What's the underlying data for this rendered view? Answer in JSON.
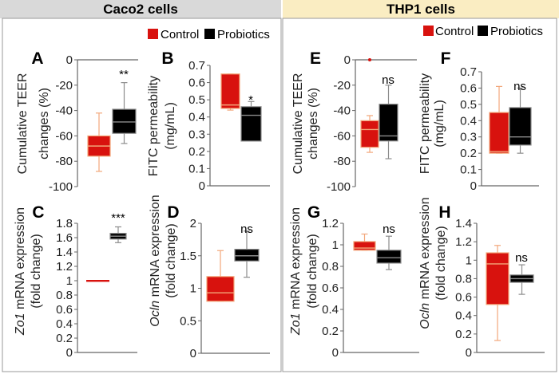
{
  "headers": {
    "left": "Caco2 cells",
    "right": "THP1 cells"
  },
  "legend": {
    "control": "Control",
    "probiotics": "Probiotics"
  },
  "colors": {
    "control_fill": "#d8120e",
    "control_line": "#f2a77a",
    "probiotics_fill": "#000000",
    "probiotics_line": "#8c8c8c",
    "left_header_bg": "#d9d9d9",
    "right_header_bg": "#faedc2"
  },
  "chart_data": [
    {
      "panel": "A",
      "type": "box",
      "ylabel_gene": "",
      "ylabel": [
        "Cumulative TEER",
        "changes (%)"
      ],
      "ylim": [
        -100,
        0
      ],
      "yticks": [
        "0",
        "-20",
        "-40",
        "-60",
        "-80",
        "-100"
      ],
      "significance": "**",
      "series": [
        {
          "name": "Control",
          "min": -88,
          "q1": -76,
          "median": -68,
          "q3": -60,
          "max": -42
        },
        {
          "name": "Probiotics",
          "min": -66,
          "q1": -58,
          "median": -49,
          "q3": -39,
          "max": -18
        }
      ]
    },
    {
      "panel": "B",
      "type": "box",
      "ylabel_gene": "",
      "ylabel": [
        "FITC permeability",
        "(mg/mL)"
      ],
      "ylim": [
        0,
        0.7
      ],
      "yticks": [
        "0",
        "0.1",
        "0.2",
        "0.3",
        "0.4",
        "0.5",
        "0.6",
        "0.7"
      ],
      "significance": "*",
      "series": [
        {
          "name": "Control",
          "min": 0.44,
          "q1": 0.45,
          "median": 0.47,
          "q3": 0.65,
          "max": 0.65
        },
        {
          "name": "Probiotics",
          "min": 0.26,
          "q1": 0.26,
          "median": 0.41,
          "q3": 0.46,
          "max": 0.49
        }
      ]
    },
    {
      "panel": "C",
      "type": "box",
      "ylabel_gene": "Zo1",
      "ylabel": [
        " mRNA expression",
        "(fold change)"
      ],
      "ylim": [
        0,
        1.8
      ],
      "yticks": [
        "0",
        "0.2",
        "0.4",
        "0.6",
        "0.8",
        "1",
        "1.2",
        "1.4",
        "1.6",
        "1.8"
      ],
      "significance": "***",
      "series": [
        {
          "name": "Control",
          "min": 1,
          "q1": 1,
          "median": 1,
          "q3": 1,
          "max": 1
        },
        {
          "name": "Probiotics",
          "min": 1.53,
          "q1": 1.58,
          "median": 1.62,
          "q3": 1.66,
          "max": 1.75
        }
      ]
    },
    {
      "panel": "D",
      "type": "box",
      "ylabel_gene": "Ocln",
      "ylabel": [
        " mRNA expression",
        "(fold change)"
      ],
      "ylim": [
        0,
        2
      ],
      "yticks": [
        "0",
        "0.5",
        "1",
        "1.5",
        "2"
      ],
      "significance": "ns",
      "series": [
        {
          "name": "Control",
          "min": 0.8,
          "q1": 0.8,
          "median": 0.93,
          "q3": 1.18,
          "max": 1.58
        },
        {
          "name": "Probiotics",
          "min": 1.17,
          "q1": 1.42,
          "median": 1.5,
          "q3": 1.6,
          "max": 1.88
        }
      ]
    },
    {
      "panel": "E",
      "type": "box",
      "ylabel_gene": "",
      "ylabel": [
        "Cumulative TEER",
        "changes (%)"
      ],
      "ylim": [
        -100,
        0
      ],
      "yticks": [
        "0",
        "-20",
        "-40",
        "-60",
        "-80",
        "-100"
      ],
      "significance": "ns",
      "series": [
        {
          "name": "Control",
          "min": -73,
          "q1": -69,
          "median": -55,
          "q3": -48,
          "max": -44,
          "outliers": [
            0
          ]
        },
        {
          "name": "Probiotics",
          "min": -78,
          "q1": -64,
          "median": -60,
          "q3": -35,
          "max": -20
        }
      ]
    },
    {
      "panel": "F",
      "type": "box",
      "ylabel_gene": "",
      "ylabel": [
        "FITC permeability",
        "(mg/mL)"
      ],
      "ylim": [
        0,
        0.7
      ],
      "yticks": [
        "0",
        "0.1",
        "0.2",
        "0.3",
        "0.4",
        "0.5",
        "0.6",
        "0.7"
      ],
      "significance": "ns",
      "series": [
        {
          "name": "Control",
          "min": 0.2,
          "q1": 0.2,
          "median": 0.21,
          "q3": 0.45,
          "max": 0.61
        },
        {
          "name": "Probiotics",
          "min": 0.2,
          "q1": 0.25,
          "median": 0.3,
          "q3": 0.48,
          "max": 0.6
        }
      ]
    },
    {
      "panel": "G",
      "type": "box",
      "ylabel_gene": "Zo1",
      "ylabel": [
        " mRNA expression",
        "(fold change)"
      ],
      "ylim": [
        0,
        1.2
      ],
      "yticks": [
        "0",
        "0.2",
        "0.4",
        "0.6",
        "0.8",
        "1",
        "1.2"
      ],
      "significance": "ns",
      "series": [
        {
          "name": "Control",
          "min": 0.95,
          "q1": 0.95,
          "median": 0.97,
          "q3": 1.03,
          "max": 1.1
        },
        {
          "name": "Probiotics",
          "min": 0.77,
          "q1": 0.83,
          "median": 0.88,
          "q3": 0.95,
          "max": 1.08
        }
      ]
    },
    {
      "panel": "H",
      "type": "box",
      "ylabel_gene": "Ocln",
      "ylabel": [
        " mRNA expression",
        "(fold change)"
      ],
      "ylim": [
        0,
        1.4
      ],
      "yticks": [
        "0",
        "0.2",
        "0.4",
        "0.6",
        "0.8",
        "1",
        "1.2",
        "1.4"
      ],
      "significance": "ns",
      "series": [
        {
          "name": "Control",
          "min": 0.13,
          "q1": 0.52,
          "median": 0.96,
          "q3": 1.08,
          "max": 1.16
        },
        {
          "name": "Probiotics",
          "min": 0.63,
          "q1": 0.76,
          "median": 0.8,
          "q3": 0.84,
          "max": 0.95
        }
      ]
    }
  ]
}
